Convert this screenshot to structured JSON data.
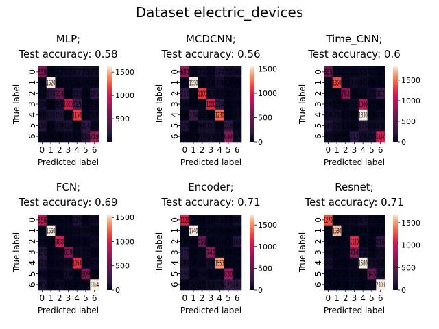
{
  "figure": {
    "suptitle": "Dataset electric_devices"
  },
  "chart_data": [
    {
      "type": "heatmap",
      "title_line1": "MLP;",
      "title_line2": "Test accuracy: 0.58",
      "xlabel": "Predicted label",
      "ylabel": "True label",
      "x_ticks": [
        "0",
        "1",
        "2",
        "3",
        "4",
        "5",
        "6"
      ],
      "y_ticks": [
        "0",
        "1",
        "2",
        "3",
        "4",
        "5",
        "6"
      ],
      "colorbar_ticks": [
        500,
        1000,
        1500
      ],
      "vmax": 1620,
      "values": [
        [
          639,
          11,
          42,
          57,
          87,
          73,
          71
        ],
        [
          1,
          1620,
          6,
          14,
          5,
          14,
          20
        ],
        [
          18,
          174,
          558,
          1,
          123,
          4,
          195
        ],
        [
          104,
          2,
          97,
          1000,
          325,
          12,
          24
        ],
        [
          48,
          110,
          150,
          6,
          1150,
          12,
          57
        ],
        [
          156,
          6,
          79,
          126,
          5,
          224,
          35
        ],
        [
          24,
          4,
          4,
          31,
          10,
          158,
          719
        ]
      ]
    },
    {
      "type": "heatmap",
      "title_line1": "MCDCNN;",
      "title_line2": "Test accuracy: 0.56",
      "xlabel": "Predicted label",
      "ylabel": "True label",
      "x_ticks": [
        "0",
        "1",
        "2",
        "3",
        "4",
        "5",
        "6"
      ],
      "y_ticks": [
        "0",
        "1",
        "2",
        "3",
        "4",
        "5",
        "6"
      ],
      "colorbar_ticks": [
        0,
        500,
        1000,
        1500
      ],
      "vmax": 1550,
      "values": [
        [
          690,
          28,
          71,
          22,
          144,
          70,
          90
        ],
        [
          0,
          1550,
          4,
          18,
          79,
          0,
          4
        ],
        [
          210,
          3,
          1100,
          63,
          21,
          2,
          27
        ],
        [
          56,
          0,
          38,
          1000,
          224,
          1,
          17
        ],
        [
          4,
          274,
          32,
          2,
          1230,
          3,
          37
        ],
        [
          128,
          0,
          96,
          100,
          18,
          218,
          18
        ],
        [
          3,
          10,
          67,
          69,
          37,
          637,
          47
        ]
      ]
    },
    {
      "type": "heatmap",
      "title_line1": "Time_CNN;",
      "title_line2": "Test accuracy: 0.6",
      "xlabel": "Predicted label",
      "ylabel": "True label",
      "x_ticks": [
        "0",
        "1",
        "2",
        "3",
        "4",
        "5",
        "6"
      ],
      "y_ticks": [
        "0",
        "1",
        "2",
        "3",
        "4",
        "5",
        "6"
      ],
      "colorbar_ticks": [
        0,
        500,
        1000,
        1500
      ],
      "vmax": 1830,
      "values": [
        [
          605,
          45,
          31,
          23,
          55,
          42,
          2
        ],
        [
          28,
          1350,
          23,
          76,
          40,
          4,
          1
        ],
        [
          20,
          23,
          792,
          4,
          21,
          73,
          302
        ],
        [
          64,
          15,
          8,
          61,
          1000,
          17,
          4
        ],
        [
          74,
          79,
          10,
          0,
          1830,
          8,
          40
        ],
        [
          160,
          75,
          14,
          0,
          175,
          63,
          75
        ],
        [
          47,
          18,
          5,
          213,
          74,
          105,
          1147
        ]
      ]
    },
    {
      "type": "heatmap",
      "title_line1": "FCN;",
      "title_line2": "Test accuracy: 0.69",
      "xlabel": "Predicted label",
      "ylabel": "True label",
      "x_ticks": [
        "0",
        "1",
        "2",
        "3",
        "4",
        "5",
        "6"
      ],
      "y_ticks": [
        "0",
        "1",
        "2",
        "3",
        "4",
        "5",
        "6"
      ],
      "colorbar_ticks": [
        0,
        500,
        1000,
        1500
      ],
      "vmax": 1560,
      "values": [
        [
          856,
          0,
          5,
          12,
          125,
          8,
          60
        ],
        [
          1,
          1560,
          1,
          12,
          32,
          40,
          6
        ],
        [
          29,
          0,
          988,
          3,
          8,
          1,
          47
        ],
        [
          156,
          0,
          14,
          639,
          41,
          32,
          4
        ],
        [
          123,
          9,
          13,
          40,
          1053,
          1,
          47
        ],
        [
          49,
          0,
          5,
          79,
          1,
          609,
          0
        ],
        [
          105,
          9,
          49,
          8,
          2,
          15,
          1854
        ]
      ]
    },
    {
      "type": "heatmap",
      "title_line1": "Encoder;",
      "title_line2": "Test accuracy: 0.71",
      "xlabel": "Predicted label",
      "ylabel": "True label",
      "x_ticks": [
        "0",
        "1",
        "2",
        "3",
        "4",
        "5",
        "6"
      ],
      "y_ticks": [
        "0",
        "1",
        "2",
        "3",
        "4",
        "5",
        "6"
      ],
      "colorbar_ticks": [
        0,
        500,
        1000,
        1500
      ],
      "vmax": 1740,
      "values": [
        [
          1123,
          16,
          4,
          10,
          48,
          13,
          90
        ],
        [
          0,
          1740,
          5,
          26,
          16,
          9,
          18
        ],
        [
          7,
          0,
          551,
          6,
          14,
          0,
          167
        ],
        [
          173,
          0,
          16,
          740,
          15,
          8,
          12
        ],
        [
          109,
          7,
          16,
          79,
          1553,
          0,
          20
        ],
        [
          155,
          0,
          54,
          1,
          4,
          830,
          2
        ],
        [
          8,
          36,
          15,
          52,
          75,
          275,
          188
        ]
      ]
    },
    {
      "type": "heatmap",
      "title_line1": "Resnet;",
      "title_line2": "Test accuracy: 0.71",
      "xlabel": "Predicted label",
      "ylabel": "True label",
      "x_ticks": [
        "0",
        "1",
        "2",
        "3",
        "4",
        "5",
        "6"
      ],
      "y_ticks": [
        "0",
        "1",
        "2",
        "3",
        "4",
        "5",
        "6"
      ],
      "colorbar_ticks": [
        0,
        500,
        1000,
        1500
      ],
      "vmax": 1680,
      "values": [
        [
          1270,
          8,
          23,
          41,
          84,
          22,
          2
        ],
        [
          0,
          1580,
          1,
          12,
          24,
          3,
          11
        ],
        [
          3,
          0,
          5,
          1120,
          5,
          5,
          216
        ],
        [
          44,
          0,
          14,
          714,
          72,
          3,
          63
        ],
        [
          96,
          3,
          2,
          34,
          1680,
          71,
          52
        ],
        [
          12,
          0,
          2,
          15,
          6,
          545,
          74
        ],
        [
          3,
          4,
          3,
          18,
          2,
          18,
          2308
        ]
      ]
    }
  ]
}
